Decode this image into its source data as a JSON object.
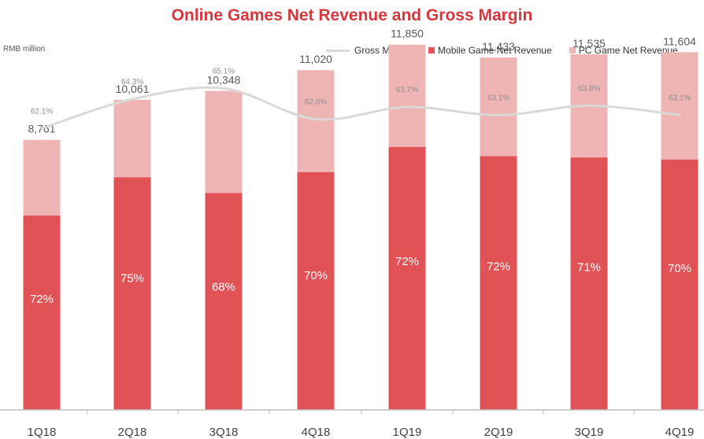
{
  "chart_data": {
    "type": "bar",
    "stacked": true,
    "title": "Online Games Net Revenue and Gross Margin",
    "unit_label": "RMB million",
    "categories": [
      "1Q18",
      "2Q18",
      "3Q18",
      "4Q18",
      "1Q19",
      "2Q19",
      "3Q19",
      "4Q19"
    ],
    "totals": [
      8761,
      10061,
      10348,
      11020,
      11850,
      11433,
      11535,
      11604
    ],
    "total_labels": [
      "8,761",
      "10,061",
      "10,348",
      "11,020",
      "11,850",
      "11,433",
      "11,535",
      "11,604"
    ],
    "mobile_share": [
      0.72,
      0.75,
      0.68,
      0.7,
      0.72,
      0.72,
      0.71,
      0.7
    ],
    "mobile_share_labels": [
      "72%",
      "75%",
      "68%",
      "70%",
      "72%",
      "72%",
      "71%",
      "70%"
    ],
    "series": [
      {
        "name": "Mobile Game Net Revenue",
        "color": "#e05256",
        "values": [
          6308,
          7546,
          7037,
          7714,
          8532,
          8232,
          8190,
          8123
        ]
      },
      {
        "name": "PC Game Net Revenue",
        "color": "#efb5b5",
        "values": [
          2453,
          2515,
          3311,
          3306,
          3318,
          3201,
          3345,
          3481
        ]
      }
    ],
    "gross_margin": {
      "name": "Gross Margin",
      "color": "#d9d9d9",
      "values": [
        62.1,
        64.3,
        65.1,
        62.8,
        63.7,
        63.1,
        63.8,
        63.1
      ],
      "labels": [
        "62.1%",
        "64.3%",
        "65.1%",
        "62.8%",
        "63.7%",
        "63.1%",
        "63.8%",
        "63.1%"
      ]
    },
    "ylim": [
      0,
      14000
    ],
    "legend": [
      "Gross Margin",
      "Mobile Game Net Revenue",
      "PC Game Net Revenue"
    ],
    "grid": false
  }
}
